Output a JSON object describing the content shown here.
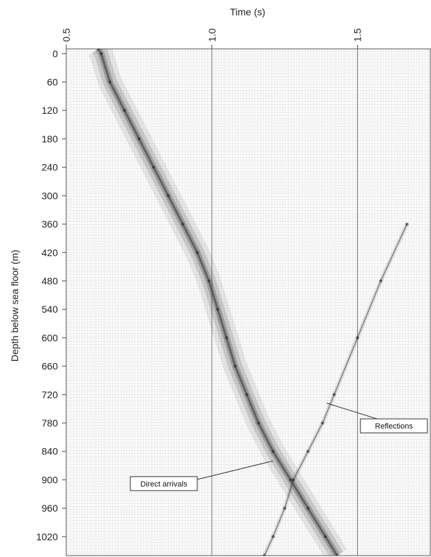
{
  "chart_data": {
    "type": "heatmap",
    "title": "",
    "xlabel": "Time (s)",
    "ylabel": "Depth below sea floor (m)",
    "x_axis_position": "top",
    "xlim": [
      0.5,
      1.75
    ],
    "ylim": [
      -10,
      1060
    ],
    "x_ticks": [
      {
        "value": 0.5,
        "label": "0.5"
      },
      {
        "value": 1.0,
        "label": "1.0"
      },
      {
        "value": 1.5,
        "label": "1.5"
      }
    ],
    "y_ticks": [
      {
        "value": 0,
        "label": "0"
      },
      {
        "value": 60,
        "label": "60"
      },
      {
        "value": 120,
        "label": "120"
      },
      {
        "value": 180,
        "label": "180"
      },
      {
        "value": 240,
        "label": "240"
      },
      {
        "value": 300,
        "label": "300"
      },
      {
        "value": 360,
        "label": "360"
      },
      {
        "value": 420,
        "label": "420"
      },
      {
        "value": 480,
        "label": "480"
      },
      {
        "value": 540,
        "label": "540"
      },
      {
        "value": 600,
        "label": "600"
      },
      {
        "value": 660,
        "label": "660"
      },
      {
        "value": 720,
        "label": "720"
      },
      {
        "value": 780,
        "label": "780"
      },
      {
        "value": 840,
        "label": "840"
      },
      {
        "value": 900,
        "label": "900"
      },
      {
        "value": 960,
        "label": "960"
      },
      {
        "value": 1020,
        "label": "1020"
      }
    ],
    "vertical_gridlines_at": [
      1.0,
      1.5
    ],
    "direct_arrival": [
      {
        "depth": -10,
        "time": 0.61
      },
      {
        "depth": 0,
        "time": 0.62
      },
      {
        "depth": 60,
        "time": 0.65
      },
      {
        "depth": 120,
        "time": 0.7
      },
      {
        "depth": 180,
        "time": 0.75
      },
      {
        "depth": 240,
        "time": 0.8
      },
      {
        "depth": 300,
        "time": 0.85
      },
      {
        "depth": 360,
        "time": 0.9
      },
      {
        "depth": 420,
        "time": 0.95
      },
      {
        "depth": 480,
        "time": 0.99
      },
      {
        "depth": 540,
        "time": 1.02
      },
      {
        "depth": 600,
        "time": 1.05
      },
      {
        "depth": 660,
        "time": 1.08
      },
      {
        "depth": 720,
        "time": 1.12
      },
      {
        "depth": 780,
        "time": 1.16
      },
      {
        "depth": 840,
        "time": 1.21
      },
      {
        "depth": 900,
        "time": 1.27
      },
      {
        "depth": 960,
        "time": 1.33
      },
      {
        "depth": 1020,
        "time": 1.39
      },
      {
        "depth": 1060,
        "time": 1.43
      }
    ],
    "reflection": [
      {
        "depth": 360,
        "time": 1.67
      },
      {
        "depth": 480,
        "time": 1.58
      },
      {
        "depth": 600,
        "time": 1.5
      },
      {
        "depth": 720,
        "time": 1.42
      },
      {
        "depth": 780,
        "time": 1.38
      },
      {
        "depth": 840,
        "time": 1.33
      },
      {
        "depth": 900,
        "time": 1.28
      },
      {
        "depth": 960,
        "time": 1.25
      },
      {
        "depth": 1020,
        "time": 1.21
      },
      {
        "depth": 1060,
        "time": 1.18
      }
    ],
    "annotations": [
      {
        "text": "Direct arrivals",
        "time": 0.72,
        "depth": 908
      },
      {
        "text": "Reflections",
        "time": 1.51,
        "depth": 786
      }
    ]
  }
}
